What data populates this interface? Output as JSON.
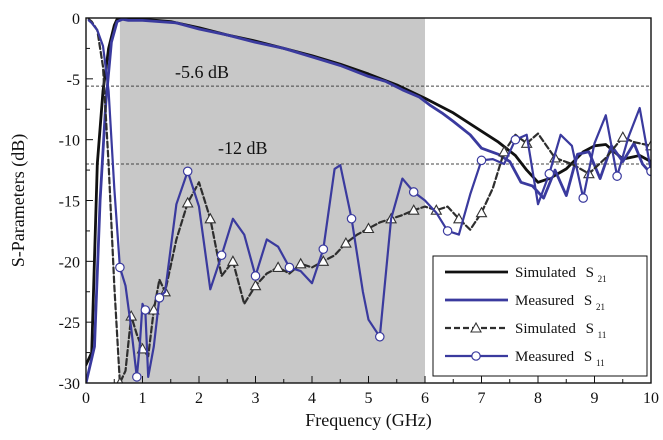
{
  "chart_data": {
    "type": "line",
    "xlabel": "Frequency (GHz)",
    "ylabel": "S-Parameters (dB)",
    "xlim": [
      0,
      10
    ],
    "ylim": [
      -30,
      0
    ],
    "x_ticks": [
      0,
      1,
      2,
      3,
      4,
      5,
      6,
      7,
      8,
      9,
      10
    ],
    "y_ticks": [
      0,
      -5,
      -10,
      -15,
      -20,
      -25,
      -30
    ],
    "shaded_region": {
      "x_start": 0.6,
      "x_end": 6.0,
      "color": "#c8c8c8"
    },
    "reference_lines": [
      {
        "y": -5.6,
        "label": "-5.6 dB"
      },
      {
        "y": -12,
        "label": "-12 dB"
      }
    ],
    "legend": {
      "placement": "bottom-right",
      "entries": [
        {
          "text": "Simulated",
          "subscript": "S21"
        },
        {
          "text": "Measured",
          "subscript": "S21"
        },
        {
          "text": "Simulated",
          "subscript": "S11"
        },
        {
          "text": "Measured",
          "subscript": "S11"
        }
      ]
    },
    "series": [
      {
        "name": "Simulated S21",
        "color": "#111111",
        "dash": "solid",
        "marker": "none",
        "x": [
          0.0,
          0.1,
          0.2,
          0.3,
          0.4,
          0.5,
          0.55,
          0.7,
          1.0,
          1.5,
          2.0,
          2.5,
          3.0,
          3.5,
          4.0,
          4.5,
          5.0,
          5.5,
          6.0,
          6.5,
          7.0,
          7.3,
          7.6,
          7.8,
          8.0,
          8.2,
          8.5,
          8.8,
          9.0,
          9.2,
          9.5,
          9.8,
          10.0
        ],
        "y": [
          -28.5,
          -27.5,
          -12,
          -6,
          -2.5,
          -0.6,
          -0.1,
          -0.05,
          -0.1,
          -0.3,
          -0.8,
          -1.4,
          -1.9,
          -2.5,
          -3.1,
          -3.8,
          -4.6,
          -5.5,
          -6.6,
          -7.8,
          -9.3,
          -10.2,
          -11.3,
          -12.5,
          -13.5,
          -13.2,
          -12.4,
          -11.0,
          -10.5,
          -10.4,
          -11.6,
          -11.3,
          -11.8
        ]
      },
      {
        "name": "Measured S21",
        "color": "#3a3a9e",
        "dash": "solid",
        "marker": "none",
        "x": [
          0.0,
          0.15,
          0.25,
          0.35,
          0.45,
          0.55,
          0.65,
          0.75,
          1.0,
          1.3,
          1.6,
          2.0,
          2.5,
          3.0,
          3.5,
          4.0,
          4.5,
          5.0,
          5.3,
          5.6,
          5.9,
          6.1,
          6.3,
          6.5,
          6.8,
          7.0,
          7.3,
          7.5,
          7.7,
          7.9,
          8.1,
          8.3,
          8.5,
          8.7,
          8.9,
          9.1,
          9.3,
          9.5,
          9.7,
          9.85,
          10.0
        ],
        "y": [
          -30,
          -27,
          -15,
          -7,
          -2,
          -0.3,
          -0.1,
          -0.2,
          -0.2,
          -0.3,
          -0.4,
          -0.9,
          -1.4,
          -2.0,
          -2.5,
          -3.2,
          -3.9,
          -4.8,
          -5.2,
          -5.9,
          -6.5,
          -7.2,
          -7.8,
          -8.5,
          -9.6,
          -10.7,
          -11.2,
          -11.8,
          -13.5,
          -13.8,
          -14.8,
          -12.5,
          -14.6,
          -11.2,
          -11.0,
          -13.2,
          -10.5,
          -11.8,
          -10.3,
          -12.0,
          -12.8
        ]
      },
      {
        "name": "Simulated S11",
        "color": "#2e2e2e",
        "dash": "dashed",
        "marker": "triangle",
        "x": [
          0.05,
          0.1,
          0.2,
          0.3,
          0.4,
          0.5,
          0.6,
          0.7,
          0.8,
          0.9,
          1.0,
          1.1,
          1.2,
          1.3,
          1.4,
          1.6,
          1.8,
          2.0,
          2.2,
          2.4,
          2.6,
          2.8,
          3.0,
          3.2,
          3.4,
          3.6,
          3.8,
          4.0,
          4.2,
          4.4,
          4.6,
          4.8,
          5.0,
          5.2,
          5.4,
          5.6,
          5.8,
          6.0,
          6.2,
          6.4,
          6.6,
          6.8,
          7.0,
          7.2,
          7.4,
          7.6,
          7.8,
          8.0,
          8.3,
          8.6,
          8.9,
          9.2,
          9.5,
          9.7,
          10.0
        ],
        "y": [
          -0.1,
          -0.3,
          -1.0,
          -4,
          -12,
          -22,
          -30,
          -29,
          -24.5,
          -26,
          -27.2,
          -27.8,
          -24,
          -21.5,
          -22.5,
          -18.2,
          -15.2,
          -13.5,
          -16.5,
          -21.2,
          -20.0,
          -23.5,
          -22.0,
          -21.0,
          -20.5,
          -21.0,
          -20.2,
          -20.5,
          -20.0,
          -19.5,
          -18.5,
          -17.8,
          -17.3,
          -16.8,
          -16.5,
          -16.2,
          -15.8,
          -15.5,
          -15.8,
          -15.5,
          -16.5,
          -17.4,
          -16.0,
          -14.0,
          -11.0,
          -9.6,
          -10.3,
          -9.5,
          -11.5,
          -12.0,
          -12.8,
          -11.5,
          -9.8,
          -10.2,
          -10.5
        ]
      },
      {
        "name": "Measured S11",
        "color": "#3a3a9e",
        "dash": "solid",
        "marker": "circle",
        "x": [
          0.05,
          0.1,
          0.2,
          0.3,
          0.4,
          0.5,
          0.6,
          0.7,
          0.8,
          0.9,
          0.95,
          1.0,
          1.05,
          1.1,
          1.2,
          1.3,
          1.4,
          1.6,
          1.8,
          2.0,
          2.2,
          2.4,
          2.6,
          2.8,
          3.0,
          3.2,
          3.4,
          3.6,
          3.8,
          4.0,
          4.2,
          4.4,
          4.5,
          4.7,
          4.9,
          5.0,
          5.2,
          5.4,
          5.6,
          5.8,
          6.0,
          6.2,
          6.4,
          6.6,
          6.8,
          7.0,
          7.2,
          7.4,
          7.6,
          7.8,
          8.0,
          8.2,
          8.4,
          8.6,
          8.8,
          9.0,
          9.2,
          9.4,
          9.6,
          9.8,
          10.0
        ],
        "y": [
          -0.2,
          -0.4,
          -1.0,
          -2.3,
          -6,
          -14,
          -20.5,
          -22,
          -25.5,
          -29.5,
          -27,
          -23.5,
          -24,
          -29.5,
          -27,
          -23,
          -22.5,
          -15.3,
          -12.6,
          -15.5,
          -22.3,
          -19.5,
          -16.5,
          -17.8,
          -21.2,
          -18.2,
          -18.8,
          -20.5,
          -20.8,
          -21.8,
          -19,
          -12.4,
          -12.1,
          -16.5,
          -22.5,
          -24.8,
          -26.2,
          -16.5,
          -13.2,
          -14.3,
          -15.0,
          -16.0,
          -17.5,
          -17.8,
          -14.5,
          -11.7,
          -11.6,
          -12.0,
          -10.0,
          -9.6,
          -15.3,
          -12.8,
          -9.6,
          -10.5,
          -14.8,
          -10.3,
          -8.0,
          -13.0,
          -9.8,
          -7.4,
          -12.6
        ]
      }
    ]
  }
}
